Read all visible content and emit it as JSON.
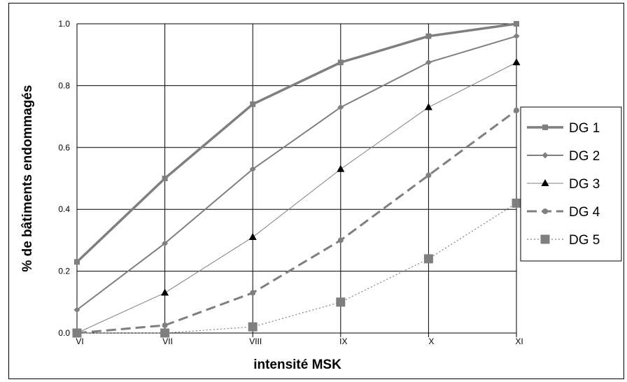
{
  "chart_data": {
    "type": "line",
    "title": "",
    "xlabel": "intensité MSK",
    "ylabel": "% de bâtiments endommagés",
    "categories": [
      "VI",
      "VII",
      "VIII",
      "IX",
      "X",
      "XI"
    ],
    "yticks": [
      "0.0",
      "0.2",
      "0.4",
      "0.6",
      "0.8",
      "1.0"
    ],
    "ylim": [
      0,
      1
    ],
    "grid": true,
    "legend_position": "right",
    "series": [
      {
        "name": "DG 1",
        "values": [
          0.23,
          0.5,
          0.74,
          0.875,
          0.96,
          1.0
        ],
        "color": "#7f7f7f",
        "marker": "square-small",
        "line": "thick-solid"
      },
      {
        "name": "DG 2",
        "values": [
          0.075,
          0.29,
          0.53,
          0.73,
          0.875,
          0.96
        ],
        "color": "#7f7f7f",
        "marker": "diamond",
        "line": "solid"
      },
      {
        "name": "DG 3",
        "values": [
          0.0,
          0.13,
          0.31,
          0.53,
          0.73,
          0.875
        ],
        "color": "#7f7f7f",
        "marker": "triangle",
        "line": "thin-solid"
      },
      {
        "name": "DG 4",
        "values": [
          0.0,
          0.025,
          0.13,
          0.3,
          0.51,
          0.72
        ],
        "color": "#7f7f7f",
        "marker": "circle",
        "line": "dashed"
      },
      {
        "name": "DG 5",
        "values": [
          0.0,
          0.0,
          0.02,
          0.1,
          0.24,
          0.42
        ],
        "color": "#7f7f7f",
        "marker": "square-large",
        "line": "dotted"
      }
    ]
  }
}
